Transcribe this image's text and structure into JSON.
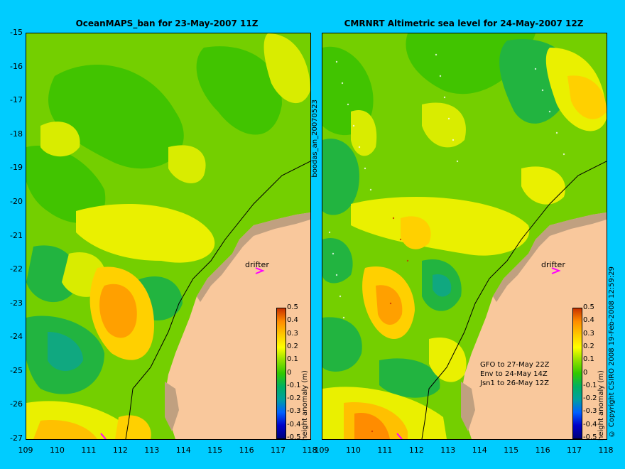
{
  "panels": [
    {
      "title": "OceanMAPS_ban for 23-May-2007 11Z",
      "drifter_label": "drifter",
      "colorbar_label": "height anomaly (m)"
    },
    {
      "title": "CMRNRT Altimetric sea level  for 24-May-2007 12Z",
      "drifter_label": "drifter",
      "colorbar_label": "height anomaly (m)",
      "info_lines": [
        "GFO to 27-May 22Z",
        "Env to 24-May 14Z",
        "Jsn1 to 26-May 12Z"
      ]
    }
  ],
  "y_ticks": [
    "-15",
    "-16",
    "-17",
    "-18",
    "-19",
    "-20",
    "-21",
    "-22",
    "-23",
    "-24",
    "-25",
    "-26",
    "-27"
  ],
  "x_ticks": [
    "109",
    "110",
    "111",
    "112",
    "113",
    "114",
    "115",
    "116",
    "117",
    "118"
  ],
  "colorbar_ticks": [
    "0.5",
    "0.4",
    "0.3",
    "0.2",
    "0.1",
    "0",
    "-0.1",
    "-0.2",
    "-0.3",
    "-0.4",
    "-0.5"
  ],
  "side_label": "boodas_an_20070523",
  "copyright": "© Copyright CSIRO 2008  19-Feb-2008 12:59:29",
  "colors": {
    "background": "#00ccff",
    "land": "#f9c89c",
    "coast": "#c0a080",
    "drifter": "#ff00ff",
    "colorscale": [
      "#00007a",
      "#0000c8",
      "#0060ff",
      "#00a0a0",
      "#00b060",
      "#30c800",
      "#90e000",
      "#ffff00",
      "#ffc800",
      "#ff8c00",
      "#c83200"
    ]
  }
}
